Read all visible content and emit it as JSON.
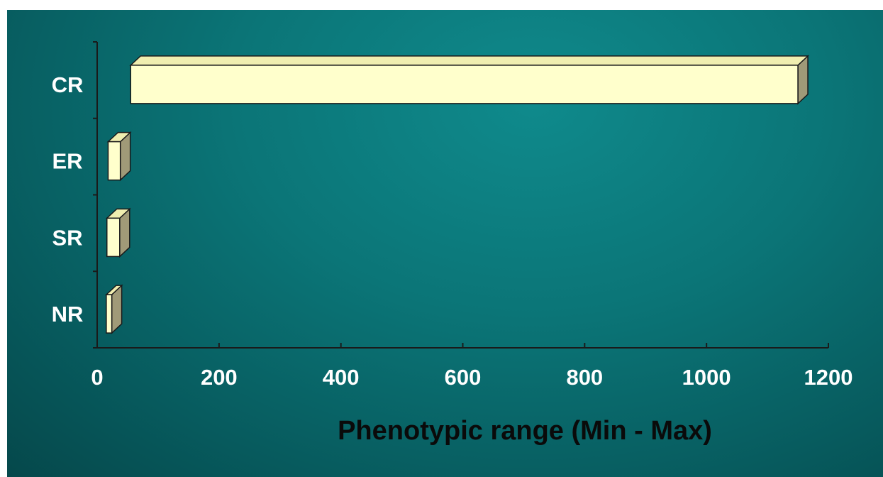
{
  "chart_data": {
    "type": "bar",
    "orientation": "horizontal",
    "title": "",
    "xlabel": "Phenotypic range (Min - Max)",
    "ylabel": "",
    "xlim": [
      0,
      1200
    ],
    "xticks": [
      "0",
      "200",
      "400",
      "600",
      "800",
      "1000",
      "1200"
    ],
    "categories": [
      "CR",
      "ER",
      "SR",
      "NR"
    ],
    "ranges": [
      {
        "category": "CR",
        "min": 55,
        "max": 1150
      },
      {
        "category": "ER",
        "min": 18,
        "max": 38
      },
      {
        "category": "SR",
        "min": 16,
        "max": 37
      },
      {
        "category": "NR",
        "min": 15,
        "max": 24
      }
    ],
    "grid": false,
    "legend": "none",
    "colors": {
      "bar_front": "#ffffcc",
      "bar_top": "#f0eeb0",
      "bar_side": "#a09a78",
      "bar_edge": "#1a1a1a",
      "axis": "#1a1a1a",
      "background": "#0b7577"
    }
  }
}
